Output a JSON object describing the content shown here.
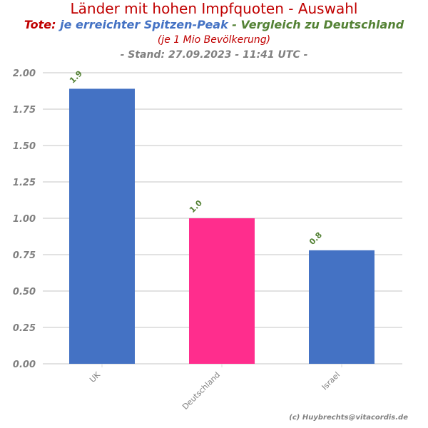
{
  "title": "Länder mit hohen Impfquoten - Auswahl",
  "subtitle": {
    "part1": "Tote:",
    "part2": " je erreichter Spitzen-Peak",
    "part3": " - Vergleich zu Deutschland"
  },
  "subtitle_line2": "(je 1 Mio Bevölkerung)",
  "subtitle_line3": "- Stand: 27.09.2023 - 11:41 UTC -",
  "footer": "(c) Huybrechts@vitacordis.de",
  "colors": {
    "title": "#c00000",
    "tote": "#c00000",
    "peak": "#4472c4",
    "vergleich": "#548235",
    "bar_blue": "#4472c4",
    "bar_pink": "#ff2d8d",
    "grid": "#d9d9d9",
    "tick": "#808080",
    "data_label": "#548235"
  },
  "chart_data": {
    "type": "bar",
    "categories": [
      "UK",
      "Deutschland",
      "Israel"
    ],
    "values": [
      1.89,
      1.0,
      0.78
    ],
    "data_labels": [
      "1.9",
      "1.0",
      "0.8"
    ],
    "bar_colors": [
      "#4472c4",
      "#ff2d8d",
      "#4472c4"
    ],
    "ylim": [
      0,
      2.0
    ],
    "yticks": [
      0.0,
      0.25,
      0.5,
      0.75,
      1.0,
      1.25,
      1.5,
      1.75,
      2.0
    ],
    "ytick_labels": [
      "0.00",
      "0.25",
      "0.50",
      "0.75",
      "1.00",
      "1.25",
      "1.50",
      "1.75",
      "2.00"
    ],
    "grid": true,
    "xlabel": "",
    "ylabel": ""
  }
}
